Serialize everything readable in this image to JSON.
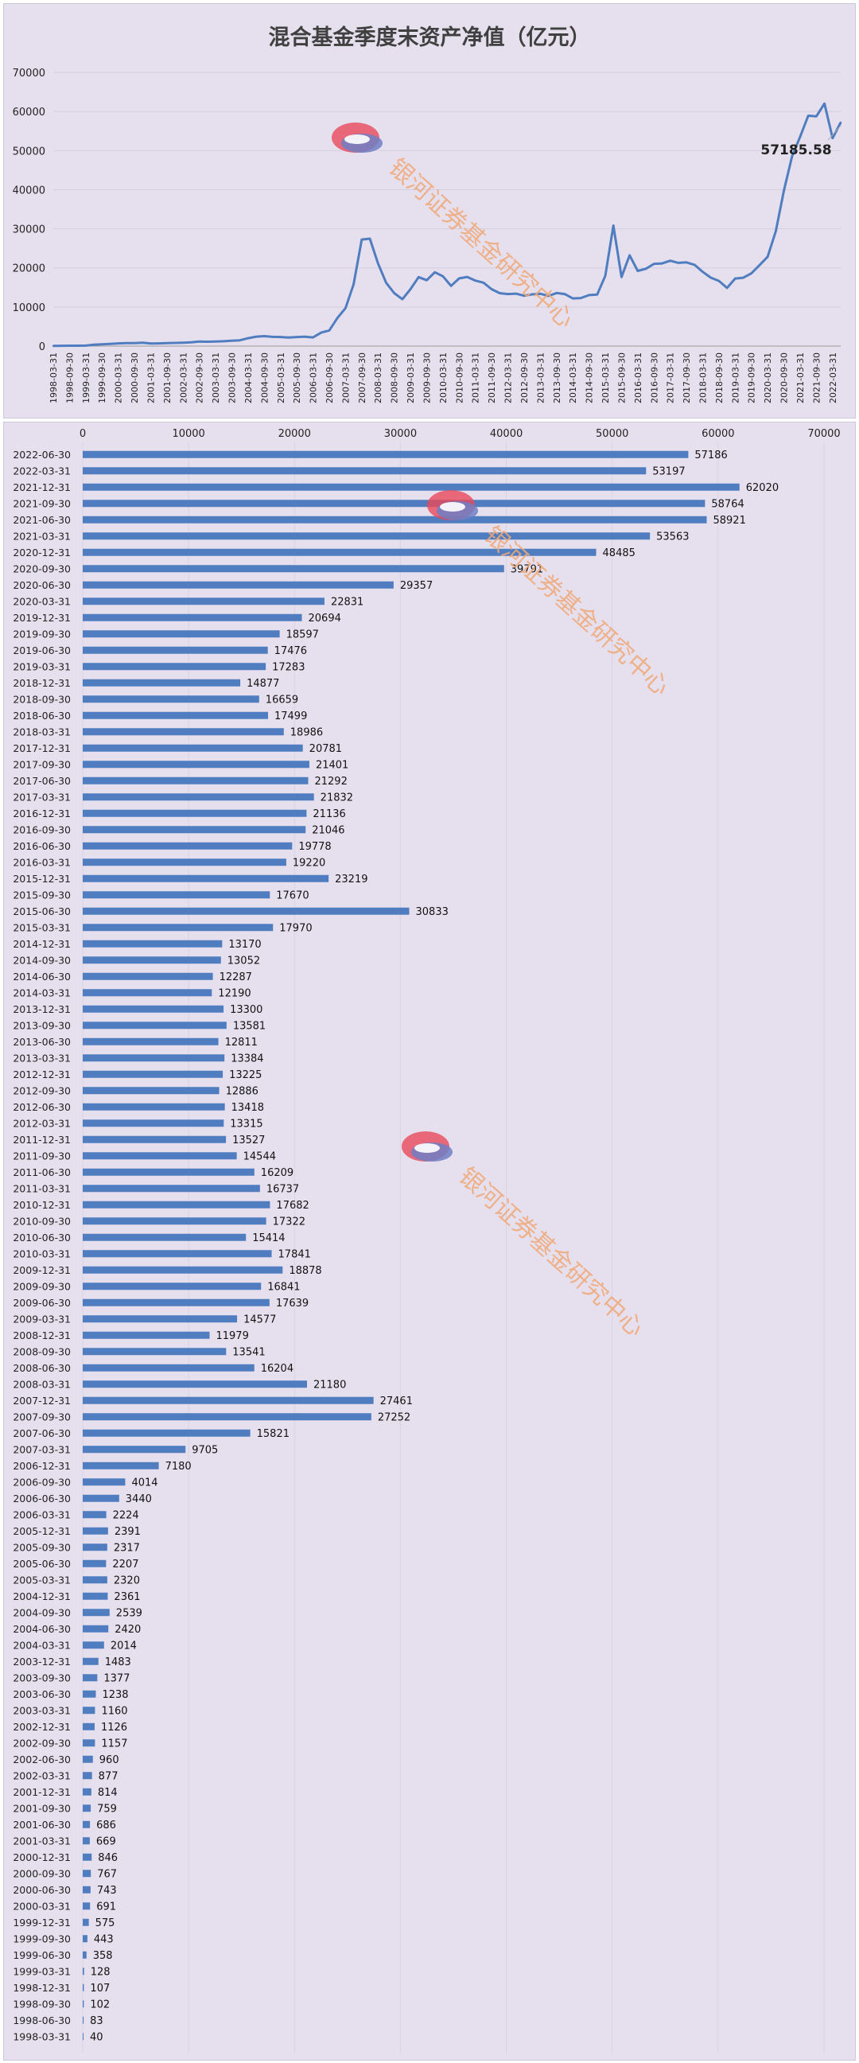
{
  "chart_data": [
    {
      "type": "line",
      "title": "混合基金季度末资产净值（亿元）",
      "ylim": [
        0,
        70000
      ],
      "yticks": [
        "0",
        "10000",
        "20000",
        "30000",
        "40000",
        "50000",
        "60000",
        "70000"
      ],
      "annotation": "57185.58",
      "x_tick_labels": [
        "1998-03-31",
        "1998-09-30",
        "1999-03-31",
        "1999-09-30",
        "2000-03-31",
        "2000-09-30",
        "2001-03-31",
        "2001-09-30",
        "2002-03-31",
        "2002-09-30",
        "2003-03-31",
        "2003-09-30",
        "2004-03-31",
        "2004-09-30",
        "2005-03-31",
        "2005-09-30",
        "2006-03-31",
        "2006-09-30",
        "2007-03-31",
        "2007-09-30",
        "2008-03-31",
        "2008-09-30",
        "2009-03-31",
        "2009-09-30",
        "2010-03-31",
        "2010-09-30",
        "2011-03-31",
        "2011-09-30",
        "2012-03-31",
        "2012-09-30",
        "2013-03-31",
        "2013-09-30",
        "2014-03-31",
        "2014-09-30",
        "2015-03-31",
        "2015-09-30",
        "2016-03-31",
        "2016-09-30",
        "2017-03-31",
        "2017-09-30",
        "2018-03-31",
        "2018-09-30",
        "2019-03-31",
        "2019-09-30",
        "2020-03-31",
        "2020-09-30",
        "2021-03-31",
        "2021-09-30",
        "2022-03-31"
      ],
      "grid": true,
      "series": [
        {
          "values": []
        }
      ],
      "color": "#4f7dbf"
    },
    {
      "type": "bar",
      "orientation": "horizontal",
      "xlim": [
        0,
        70000
      ],
      "xticks": [
        "0",
        "10000",
        "20000",
        "30000",
        "40000",
        "50000",
        "60000",
        "70000"
      ],
      "color": "#4f7dbf",
      "categories": [
        "2022-06-30",
        "2022-03-31",
        "2021-12-31",
        "2021-09-30",
        "2021-06-30",
        "2021-03-31",
        "2020-12-31",
        "2020-09-30",
        "2020-06-30",
        "2020-03-31",
        "2019-12-31",
        "2019-09-30",
        "2019-06-30",
        "2019-03-31",
        "2018-12-31",
        "2018-09-30",
        "2018-06-30",
        "2018-03-31",
        "2017-12-31",
        "2017-09-30",
        "2017-06-30",
        "2017-03-31",
        "2016-12-31",
        "2016-09-30",
        "2016-06-30",
        "2016-03-31",
        "2015-12-31",
        "2015-09-30",
        "2015-06-30",
        "2015-03-31",
        "2014-12-31",
        "2014-09-30",
        "2014-06-30",
        "2014-03-31",
        "2013-12-31",
        "2013-09-30",
        "2013-06-30",
        "2013-03-31",
        "2012-12-31",
        "2012-09-30",
        "2012-06-30",
        "2012-03-31",
        "2011-12-31",
        "2011-09-30",
        "2011-06-30",
        "2011-03-31",
        "2010-12-31",
        "2010-09-30",
        "2010-06-30",
        "2010-03-31",
        "2009-12-31",
        "2009-09-30",
        "2009-06-30",
        "2009-03-31",
        "2008-12-31",
        "2008-09-30",
        "2008-06-30",
        "2008-03-31",
        "2007-12-31",
        "2007-09-30",
        "2007-06-30",
        "2007-03-31",
        "2006-12-31",
        "2006-09-30",
        "2006-06-30",
        "2006-03-31",
        "2005-12-31",
        "2005-09-30",
        "2005-06-30",
        "2005-03-31",
        "2004-12-31",
        "2004-09-30",
        "2004-06-30",
        "2004-03-31",
        "2003-12-31",
        "2003-09-30",
        "2003-06-30",
        "2003-03-31",
        "2002-12-31",
        "2002-09-30",
        "2002-06-30",
        "2002-03-31",
        "2001-12-31",
        "2001-09-30",
        "2001-06-30",
        "2001-03-31",
        "2000-12-31",
        "2000-09-30",
        "2000-06-30",
        "2000-03-31",
        "1999-12-31",
        "1999-09-30",
        "1999-06-30",
        "1999-03-31",
        "1998-12-31",
        "1998-09-30",
        "1998-06-30",
        "1998-03-31"
      ],
      "values": [
        57186,
        53197,
        62020,
        58764,
        58921,
        53563,
        48485,
        39791,
        29357,
        22831,
        20694,
        18597,
        17476,
        17283,
        14877,
        16659,
        17499,
        18986,
        20781,
        21401,
        21292,
        21832,
        21136,
        21046,
        19778,
        19220,
        23219,
        17670,
        30833,
        17970,
        13170,
        13052,
        12287,
        12190,
        13300,
        13581,
        12811,
        13384,
        13225,
        12886,
        13418,
        13315,
        13527,
        14544,
        16209,
        16737,
        17682,
        17322,
        15414,
        17841,
        18878,
        16841,
        17639,
        14577,
        11979,
        13541,
        16204,
        21180,
        27461,
        27252,
        15821,
        9705,
        7180,
        4014,
        3440,
        2224,
        2391,
        2317,
        2207,
        2320,
        2361,
        2539,
        2420,
        2014,
        1483,
        1377,
        1238,
        1160,
        1126,
        1157,
        960,
        877,
        814,
        759,
        686,
        669,
        846,
        767,
        743,
        691,
        575,
        443,
        358,
        128,
        107,
        102,
        83,
        40
      ]
    }
  ],
  "watermark": {
    "text": "银河证券基金研究中心",
    "colors": [
      "#e8485a",
      "#6f7fc4",
      "#f0a878"
    ]
  }
}
